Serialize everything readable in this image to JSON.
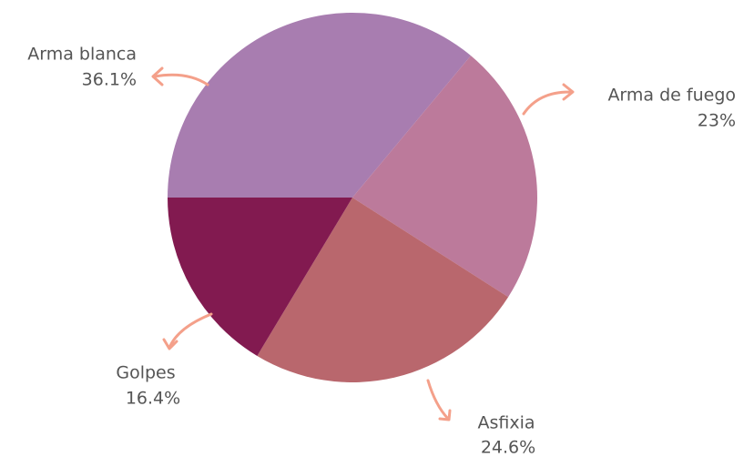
{
  "chart_data": {
    "type": "pie",
    "categories": [
      "Arma blanca",
      "Arma de fuego",
      "Asfixia",
      "Golpes"
    ],
    "values": [
      36.1,
      23,
      24.6,
      16.4
    ],
    "value_labels": [
      "36.1%",
      "23%",
      "24.6%",
      "16.4%"
    ],
    "colors": [
      "#a87db0",
      "#bc7a9b",
      "#b9676d",
      "#821a50"
    ]
  }
}
